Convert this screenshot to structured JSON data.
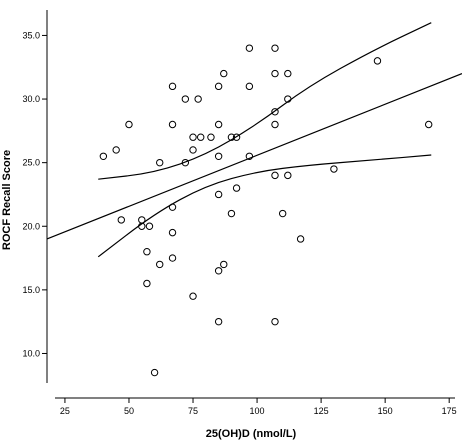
{
  "chart_data": {
    "type": "scatter",
    "xlabel": "25(OH)D (nmol/L)",
    "ylabel": "ROCF Recall Score",
    "xlim": [
      18,
      180
    ],
    "ylim": [
      6.5,
      37
    ],
    "x_ticks": [
      25,
      50,
      75,
      100,
      125,
      150,
      175
    ],
    "y_ticks": [
      10.0,
      15.0,
      20.0,
      25.0,
      30.0,
      35.0
    ],
    "x_tick_labels": [
      "25",
      "50",
      "75",
      "100",
      "125",
      "150",
      "175"
    ],
    "y_tick_labels": [
      "10.0",
      "15.0",
      "20.0",
      "25.0",
      "30.0",
      "35.0"
    ],
    "grid": false,
    "points": [
      {
        "x": 40,
        "y": 25.5
      },
      {
        "x": 45,
        "y": 26.0
      },
      {
        "x": 47,
        "y": 20.5
      },
      {
        "x": 50,
        "y": 28.0
      },
      {
        "x": 55,
        "y": 20.5
      },
      {
        "x": 55,
        "y": 20.0
      },
      {
        "x": 57,
        "y": 18.0
      },
      {
        "x": 57,
        "y": 15.5
      },
      {
        "x": 58,
        "y": 20.0
      },
      {
        "x": 60,
        "y": 8.5
      },
      {
        "x": 62,
        "y": 25.0
      },
      {
        "x": 62,
        "y": 17.0
      },
      {
        "x": 67,
        "y": 31.0
      },
      {
        "x": 67,
        "y": 28.0
      },
      {
        "x": 67,
        "y": 21.5
      },
      {
        "x": 67,
        "y": 19.5
      },
      {
        "x": 67,
        "y": 17.5
      },
      {
        "x": 72,
        "y": 30.0
      },
      {
        "x": 72,
        "y": 25.0
      },
      {
        "x": 75,
        "y": 27.0
      },
      {
        "x": 75,
        "y": 26.0
      },
      {
        "x": 75,
        "y": 14.5
      },
      {
        "x": 77,
        "y": 30.0
      },
      {
        "x": 78,
        "y": 27.0
      },
      {
        "x": 82,
        "y": 27.0
      },
      {
        "x": 85,
        "y": 31.0
      },
      {
        "x": 85,
        "y": 28.0
      },
      {
        "x": 85,
        "y": 25.5
      },
      {
        "x": 85,
        "y": 22.5
      },
      {
        "x": 85,
        "y": 16.5
      },
      {
        "x": 85,
        "y": 12.5
      },
      {
        "x": 87,
        "y": 32.0
      },
      {
        "x": 87,
        "y": 17.0
      },
      {
        "x": 90,
        "y": 27.0
      },
      {
        "x": 90,
        "y": 21.0
      },
      {
        "x": 92,
        "y": 27.0
      },
      {
        "x": 92,
        "y": 23.0
      },
      {
        "x": 97,
        "y": 34.0
      },
      {
        "x": 97,
        "y": 31.0
      },
      {
        "x": 97,
        "y": 25.5
      },
      {
        "x": 107,
        "y": 34.0
      },
      {
        "x": 107,
        "y": 32.0
      },
      {
        "x": 107,
        "y": 29.0
      },
      {
        "x": 107,
        "y": 28.0
      },
      {
        "x": 107,
        "y": 24.0
      },
      {
        "x": 107,
        "y": 12.5
      },
      {
        "x": 110,
        "y": 21.0
      },
      {
        "x": 112,
        "y": 32.0
      },
      {
        "x": 112,
        "y": 30.0
      },
      {
        "x": 112,
        "y": 24.0
      },
      {
        "x": 117,
        "y": 19.0
      },
      {
        "x": 130,
        "y": 24.5
      },
      {
        "x": 147,
        "y": 33.0
      },
      {
        "x": 167,
        "y": 28.0
      }
    ],
    "fit_line": [
      {
        "x": 18,
        "y": 19.0
      },
      {
        "x": 180,
        "y": 32.0
      }
    ],
    "ci_upper": [
      {
        "x": 38,
        "y": 23.7
      },
      {
        "x": 60,
        "y": 24.2
      },
      {
        "x": 80,
        "y": 25.6
      },
      {
        "x": 100,
        "y": 28.0
      },
      {
        "x": 120,
        "y": 31.0
      },
      {
        "x": 145,
        "y": 33.8
      },
      {
        "x": 168,
        "y": 36.0
      }
    ],
    "ci_lower": [
      {
        "x": 38,
        "y": 17.6
      },
      {
        "x": 60,
        "y": 21.0
      },
      {
        "x": 80,
        "y": 23.2
      },
      {
        "x": 100,
        "y": 24.3
      },
      {
        "x": 120,
        "y": 24.8
      },
      {
        "x": 145,
        "y": 25.2
      },
      {
        "x": 168,
        "y": 25.6
      }
    ]
  }
}
